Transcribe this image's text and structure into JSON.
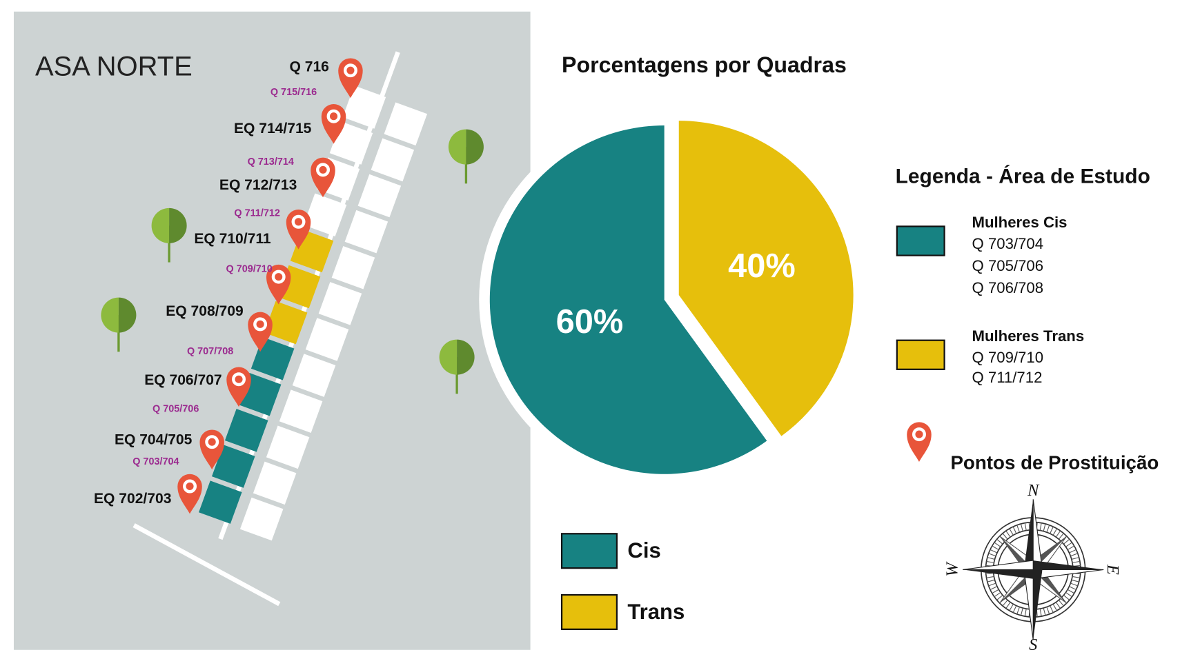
{
  "map": {
    "title": "ASA NORTE",
    "labels": [
      "Q 716",
      "EQ 714/715",
      "EQ 712/713",
      "EQ 710/711",
      "EQ 708/709",
      "EQ 706/707",
      "EQ 704/705",
      "EQ 702/703"
    ],
    "sublabels": [
      "Q 715/716",
      "Q 713/714",
      "Q 711/712",
      "Q 709/710",
      "Q 707/708",
      "Q 705/706",
      "Q 703/704"
    ]
  },
  "chart_data": {
    "type": "pie",
    "title": "Porcentagens por Quadras",
    "categories": [
      "Cis",
      "Trans"
    ],
    "values": [
      60,
      40
    ],
    "value_labels": [
      "60%",
      "40%"
    ],
    "colors": [
      "#178282",
      "#e6bf0c"
    ]
  },
  "legend": {
    "title": "Legenda - Área de Estudo",
    "groups": [
      {
        "name": "Mulheres Cis",
        "items": [
          "Q 703/704",
          "Q 705/706",
          "Q 706/708"
        ]
      },
      {
        "name": "Mulheres Trans",
        "items": [
          "Q 709/710",
          "Q 711/712"
        ]
      }
    ],
    "pins": "Pontos de Prostituição"
  },
  "compass": {
    "n": "N",
    "e": "E",
    "s": "S",
    "w": "W"
  }
}
